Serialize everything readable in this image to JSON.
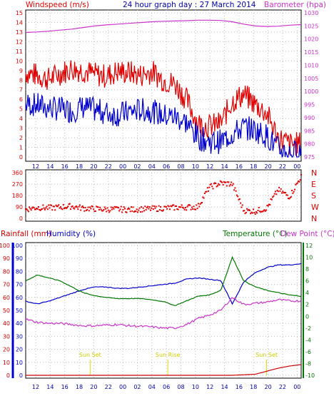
{
  "title": "24 hour graph day : 27 March 2014",
  "colors": {
    "wind": "#e00000",
    "gust_fill": "#e00000",
    "speed": "#0000cc",
    "baro": "#cc33cc",
    "humidity": "#0000cc",
    "rain": "#cc0000",
    "temp": "#007700",
    "dew": "#cc33cc",
    "dir": "#e00000",
    "marker": "#dddd00"
  },
  "labels": {
    "windspeed": "Windspeed (m/s)",
    "barometer": "Barometer (hpa)",
    "rainfall": "Rainfall (mm)",
    "humidity": "Humidity (%)",
    "temperature": "Temperature (°C)",
    "dewpoint": "Dew Point (°C)"
  },
  "chart_data": [
    {
      "type": "line",
      "name": "wind",
      "x_ticks": [
        "12",
        "14",
        "16",
        "18",
        "20",
        "22",
        "00",
        "02",
        "04",
        "06",
        "08",
        "10",
        "12",
        "14",
        "16",
        "18",
        "20",
        "22",
        "00"
      ],
      "y_left_ticks": [
        "0",
        "1",
        "2",
        "3",
        "4",
        "5",
        "6",
        "7",
        "8",
        "9",
        "10",
        "11",
        "12",
        "13",
        "14",
        "15"
      ],
      "y_right_ticks": [
        "975",
        "980",
        "985",
        "990",
        "995",
        "1000",
        "1005",
        "1010",
        "1015",
        "1020",
        "1025",
        "1030"
      ],
      "ylim_left": [
        0,
        15
      ],
      "ylim_right": [
        975,
        1030
      ],
      "series": [
        {
          "name": "Windspeed (m/s)",
          "x": [
            11,
            12,
            13,
            14,
            15,
            16,
            17,
            18,
            19,
            20,
            21,
            22,
            23,
            24,
            25,
            26,
            27,
            28,
            29,
            30,
            31,
            32,
            33,
            34,
            35
          ],
          "values": [
            5.5,
            5.4,
            5.1,
            5.0,
            4.8,
            5.2,
            4.9,
            4.6,
            4.4,
            4.7,
            4.9,
            4.8,
            4.3,
            4.2,
            3.6,
            2.0,
            1.6,
            1.6,
            2.4,
            3.1,
            2.8,
            2.2,
            0.8,
            0.4,
            0.6
          ]
        },
        {
          "name": "Gust",
          "x": [
            11,
            12,
            13,
            14,
            15,
            16,
            17,
            18,
            19,
            20,
            21,
            22,
            23,
            24,
            25,
            26,
            27,
            28,
            29,
            30,
            31,
            32,
            33,
            34,
            35
          ],
          "values": [
            8.8,
            8.5,
            8.1,
            8.7,
            9.2,
            9.0,
            8.6,
            8.4,
            8.9,
            8.8,
            8.5,
            8.9,
            8.0,
            7.6,
            6.0,
            3.5,
            3.2,
            3.5,
            5.8,
            6.5,
            5.5,
            4.5,
            2.0,
            1.3,
            1.4
          ]
        },
        {
          "name": "Barometer (hpa)",
          "x": [
            11,
            12,
            13,
            14,
            15,
            16,
            17,
            18,
            19,
            20,
            21,
            22,
            23,
            24,
            25,
            26,
            27,
            28,
            29,
            30,
            31,
            32,
            33,
            34,
            35
          ],
          "values": [
            1022.5,
            1022.7,
            1023.0,
            1023.4,
            1023.8,
            1024.4,
            1025.0,
            1025.4,
            1025.7,
            1026.0,
            1026.3,
            1026.6,
            1026.8,
            1026.9,
            1027.0,
            1027.2,
            1027.2,
            1027.1,
            1026.6,
            1025.7,
            1025.0,
            1024.8,
            1024.9,
            1025.3,
            1025.5
          ]
        }
      ]
    },
    {
      "type": "scatter",
      "name": "direction",
      "y_ticks": [
        "0",
        "90",
        "180",
        "270",
        "360"
      ],
      "y_right_ticks": [
        "N",
        "W",
        "S",
        "E",
        "N"
      ],
      "ylim": [
        0,
        360
      ],
      "series": [
        {
          "name": "Wind direction",
          "x": [
            11,
            12,
            13,
            14,
            15,
            16,
            17,
            18,
            19,
            20,
            21,
            22,
            23,
            24,
            25,
            26,
            27,
            28,
            29,
            30,
            31,
            32,
            33,
            34,
            35
          ],
          "values": [
            72,
            85,
            82,
            88,
            95,
            80,
            75,
            70,
            72,
            68,
            72,
            75,
            80,
            85,
            88,
            90,
            245,
            278,
            270,
            62,
            55,
            80,
            225,
            170,
            330
          ]
        }
      ]
    },
    {
      "type": "line",
      "name": "rain-humidity-temp",
      "y_left_ticks": [
        "0",
        "10",
        "20",
        "30",
        "40",
        "50",
        "60",
        "70",
        "80",
        "90",
        "100"
      ],
      "y_right_ticks": [
        "-10",
        "-8",
        "-6",
        "-4",
        "-2",
        "0",
        "2",
        "4",
        "6",
        "8",
        "10",
        "12"
      ],
      "ylim_left": [
        0,
        100
      ],
      "ylim_right": [
        -10,
        12
      ],
      "annotations": [
        "Sun Set",
        "Sun Rise",
        "Sun Set"
      ],
      "series": [
        {
          "name": "Humidity (%)",
          "x": [
            11,
            12,
            13,
            14,
            15,
            16,
            17,
            18,
            19,
            20,
            21,
            22,
            23,
            24,
            25,
            26,
            27,
            28,
            29,
            30,
            31,
            32,
            33,
            34,
            35
          ],
          "values": [
            57,
            55,
            57,
            60,
            63,
            66,
            68,
            68,
            67,
            67,
            68,
            69,
            70,
            71,
            74,
            75,
            74,
            73,
            55,
            72,
            79,
            83,
            85,
            85,
            86
          ]
        },
        {
          "name": "Temperature (°C)",
          "x": [
            11,
            12,
            13,
            14,
            15,
            16,
            17,
            18,
            19,
            20,
            21,
            22,
            23,
            24,
            25,
            26,
            27,
            28,
            29,
            30,
            31,
            32,
            33,
            34,
            35
          ],
          "values": [
            6.0,
            7.0,
            6.5,
            6.0,
            5.0,
            4.0,
            3.5,
            3.2,
            3.0,
            3.0,
            3.0,
            2.8,
            2.5,
            1.8,
            2.6,
            3.4,
            3.6,
            4.4,
            10.0,
            6.0,
            5.0,
            4.4,
            4.0,
            3.6,
            3.4
          ]
        },
        {
          "name": "Dew Point (°C)",
          "x": [
            11,
            12,
            13,
            14,
            15,
            16,
            17,
            18,
            19,
            20,
            21,
            22,
            23,
            24,
            25,
            26,
            27,
            28,
            29,
            30,
            31,
            32,
            33,
            34,
            35
          ],
          "values": [
            -0.5,
            -1.0,
            -1.2,
            -1.2,
            -1.4,
            -1.6,
            -1.6,
            -1.5,
            -1.4,
            -1.6,
            -1.7,
            -1.8,
            -2.0,
            -2.0,
            -1.4,
            -0.4,
            0.2,
            1.0,
            3.2,
            2.0,
            2.2,
            2.4,
            2.8,
            2.6,
            2.6
          ]
        },
        {
          "name": "Rainfall (mm)",
          "x": [
            11,
            20,
            29,
            31,
            33,
            34,
            35
          ],
          "values": [
            0,
            0,
            0,
            0.3,
            2.0,
            2.6,
            3.0
          ]
        }
      ]
    }
  ]
}
